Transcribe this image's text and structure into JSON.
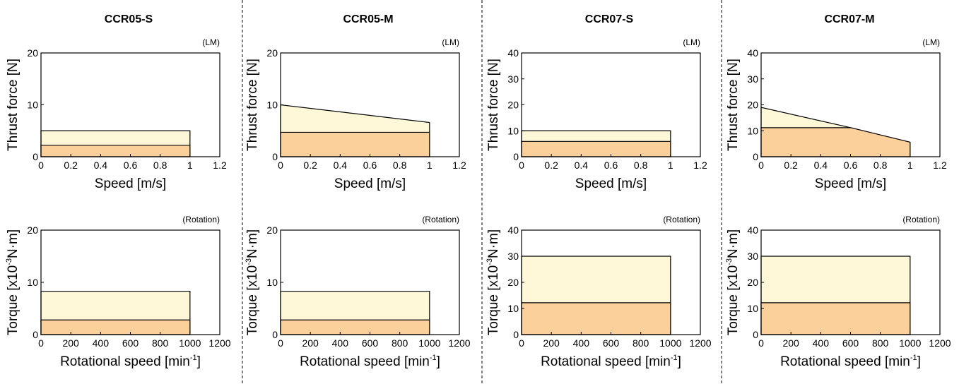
{
  "colors": {
    "max_fill": "#fff8d8",
    "rated_fill": "#fcd09a",
    "line": "#000000",
    "divider": "#000000"
  },
  "columns": [
    {
      "title": "CCR05-S"
    },
    {
      "title": "CCR05-M"
    },
    {
      "title": "CCR07-S"
    },
    {
      "title": "CCR07-M"
    }
  ],
  "chart_data": [
    {
      "type": "area",
      "model": "CCR05-S",
      "mode": "(LM)",
      "xlabel": "Speed [m/s]",
      "ylabel": "Thrust force [N]",
      "xlim": [
        0,
        1.2
      ],
      "ylim": [
        0,
        20
      ],
      "xticks": [
        "0",
        "0.2",
        "0.4",
        "0.6",
        "0.8",
        "1",
        "1.2"
      ],
      "yticks": [
        "0",
        "10",
        "20"
      ],
      "series": [
        {
          "x": [
            0,
            1
          ],
          "y": [
            5,
            5
          ]
        },
        {
          "x": [
            0,
            1
          ],
          "y": [
            2.2,
            2.2
          ]
        }
      ]
    },
    {
      "type": "area",
      "model": "CCR05-M",
      "mode": "(LM)",
      "xlabel": "Speed [m/s]",
      "ylabel": "Thrust force [N]",
      "xlim": [
        0,
        1.2
      ],
      "ylim": [
        0,
        20
      ],
      "xticks": [
        "0",
        "0.2",
        "0.4",
        "0.6",
        "0.8",
        "1",
        "1.2"
      ],
      "yticks": [
        "0",
        "10",
        "20"
      ],
      "series": [
        {
          "x": [
            0,
            1
          ],
          "y": [
            10,
            6.6
          ]
        },
        {
          "x": [
            0,
            1
          ],
          "y": [
            4.7,
            4.7
          ]
        }
      ]
    },
    {
      "type": "area",
      "model": "CCR07-S",
      "mode": "(LM)",
      "xlabel": "Speed [m/s]",
      "ylabel": "Thrust force [N]",
      "xlim": [
        0,
        1.2
      ],
      "ylim": [
        0,
        40
      ],
      "xticks": [
        "0",
        "0.2",
        "0.4",
        "0.6",
        "0.8",
        "1",
        "1.2"
      ],
      "yticks": [
        "0",
        "10",
        "20",
        "30",
        "40"
      ],
      "series": [
        {
          "x": [
            0,
            1
          ],
          "y": [
            10,
            10
          ]
        },
        {
          "x": [
            0,
            1
          ],
          "y": [
            5.9,
            5.9
          ]
        }
      ]
    },
    {
      "type": "area",
      "model": "CCR07-M",
      "mode": "(LM)",
      "xlabel": "Speed [m/s]",
      "ylabel": "Thrust force [N]",
      "xlim": [
        0,
        1.2
      ],
      "ylim": [
        0,
        40
      ],
      "xticks": [
        "0",
        "0.2",
        "0.4",
        "0.6",
        "0.8",
        "1",
        "1.2"
      ],
      "yticks": [
        "0",
        "10",
        "20",
        "30",
        "40"
      ],
      "series": [
        {
          "x": [
            0,
            0.6,
            1
          ],
          "y": [
            19,
            11.2,
            5.6
          ]
        },
        {
          "x": [
            0,
            0.6,
            1
          ],
          "y": [
            11.2,
            11.2,
            5.6
          ]
        }
      ]
    },
    {
      "type": "area",
      "model": "CCR05-S",
      "mode": "(Rotation)",
      "xlabel": "Rotational speed [min",
      "xlabel_sup": "-1",
      "xlabel_end": "]",
      "ylabel": "Torque [x10",
      "ylabel_sup": "-3",
      "ylabel_end": "N·m]",
      "xlim": [
        0,
        1200
      ],
      "ylim": [
        0,
        20
      ],
      "xticks": [
        "0",
        "200",
        "400",
        "600",
        "800",
        "1000",
        "1200"
      ],
      "yticks": [
        "0",
        "10",
        "20"
      ],
      "series": [
        {
          "x": [
            0,
            1000
          ],
          "y": [
            8.3,
            8.3
          ]
        },
        {
          "x": [
            0,
            1000
          ],
          "y": [
            2.8,
            2.8
          ]
        }
      ]
    },
    {
      "type": "area",
      "model": "CCR05-M",
      "mode": "(Rotation)",
      "xlabel": "Rotational speed [min",
      "xlabel_sup": "-1",
      "xlabel_end": "]",
      "ylabel": "Torque [x10",
      "ylabel_sup": "-3",
      "ylabel_end": "N·m]",
      "xlim": [
        0,
        1200
      ],
      "ylim": [
        0,
        20
      ],
      "xticks": [
        "0",
        "200",
        "400",
        "600",
        "800",
        "1000",
        "1200"
      ],
      "yticks": [
        "0",
        "10",
        "20"
      ],
      "series": [
        {
          "x": [
            0,
            1000
          ],
          "y": [
            8.3,
            8.3
          ]
        },
        {
          "x": [
            0,
            1000
          ],
          "y": [
            2.8,
            2.8
          ]
        }
      ]
    },
    {
      "type": "area",
      "model": "CCR07-S",
      "mode": "(Rotation)",
      "xlabel": "Rotational speed [min",
      "xlabel_sup": "-1",
      "xlabel_end": "]",
      "ylabel": "Torque [x10",
      "ylabel_sup": "-3",
      "ylabel_end": "N·m]",
      "xlim": [
        0,
        1200
      ],
      "ylim": [
        0,
        40
      ],
      "xticks": [
        "0",
        "200",
        "400",
        "600",
        "800",
        "1000",
        "1200"
      ],
      "yticks": [
        "0",
        "10",
        "20",
        "30",
        "40"
      ],
      "series": [
        {
          "x": [
            0,
            1000
          ],
          "y": [
            30,
            30
          ]
        },
        {
          "x": [
            0,
            1000
          ],
          "y": [
            12.2,
            12.2
          ]
        }
      ]
    },
    {
      "type": "area",
      "model": "CCR07-M",
      "mode": "(Rotation)",
      "xlabel": "Rotational speed [min",
      "xlabel_sup": "-1",
      "xlabel_end": "]",
      "ylabel": "Torque [x10",
      "ylabel_sup": "-3",
      "ylabel_end": "N·m]",
      "xlim": [
        0,
        1200
      ],
      "ylim": [
        0,
        40
      ],
      "xticks": [
        "0",
        "200",
        "400",
        "600",
        "800",
        "1000",
        "1200"
      ],
      "yticks": [
        "0",
        "10",
        "20",
        "30",
        "40"
      ],
      "series": [
        {
          "x": [
            0,
            1000
          ],
          "y": [
            30,
            30
          ]
        },
        {
          "x": [
            0,
            1000
          ],
          "y": [
            12.2,
            12.2
          ]
        }
      ]
    }
  ]
}
